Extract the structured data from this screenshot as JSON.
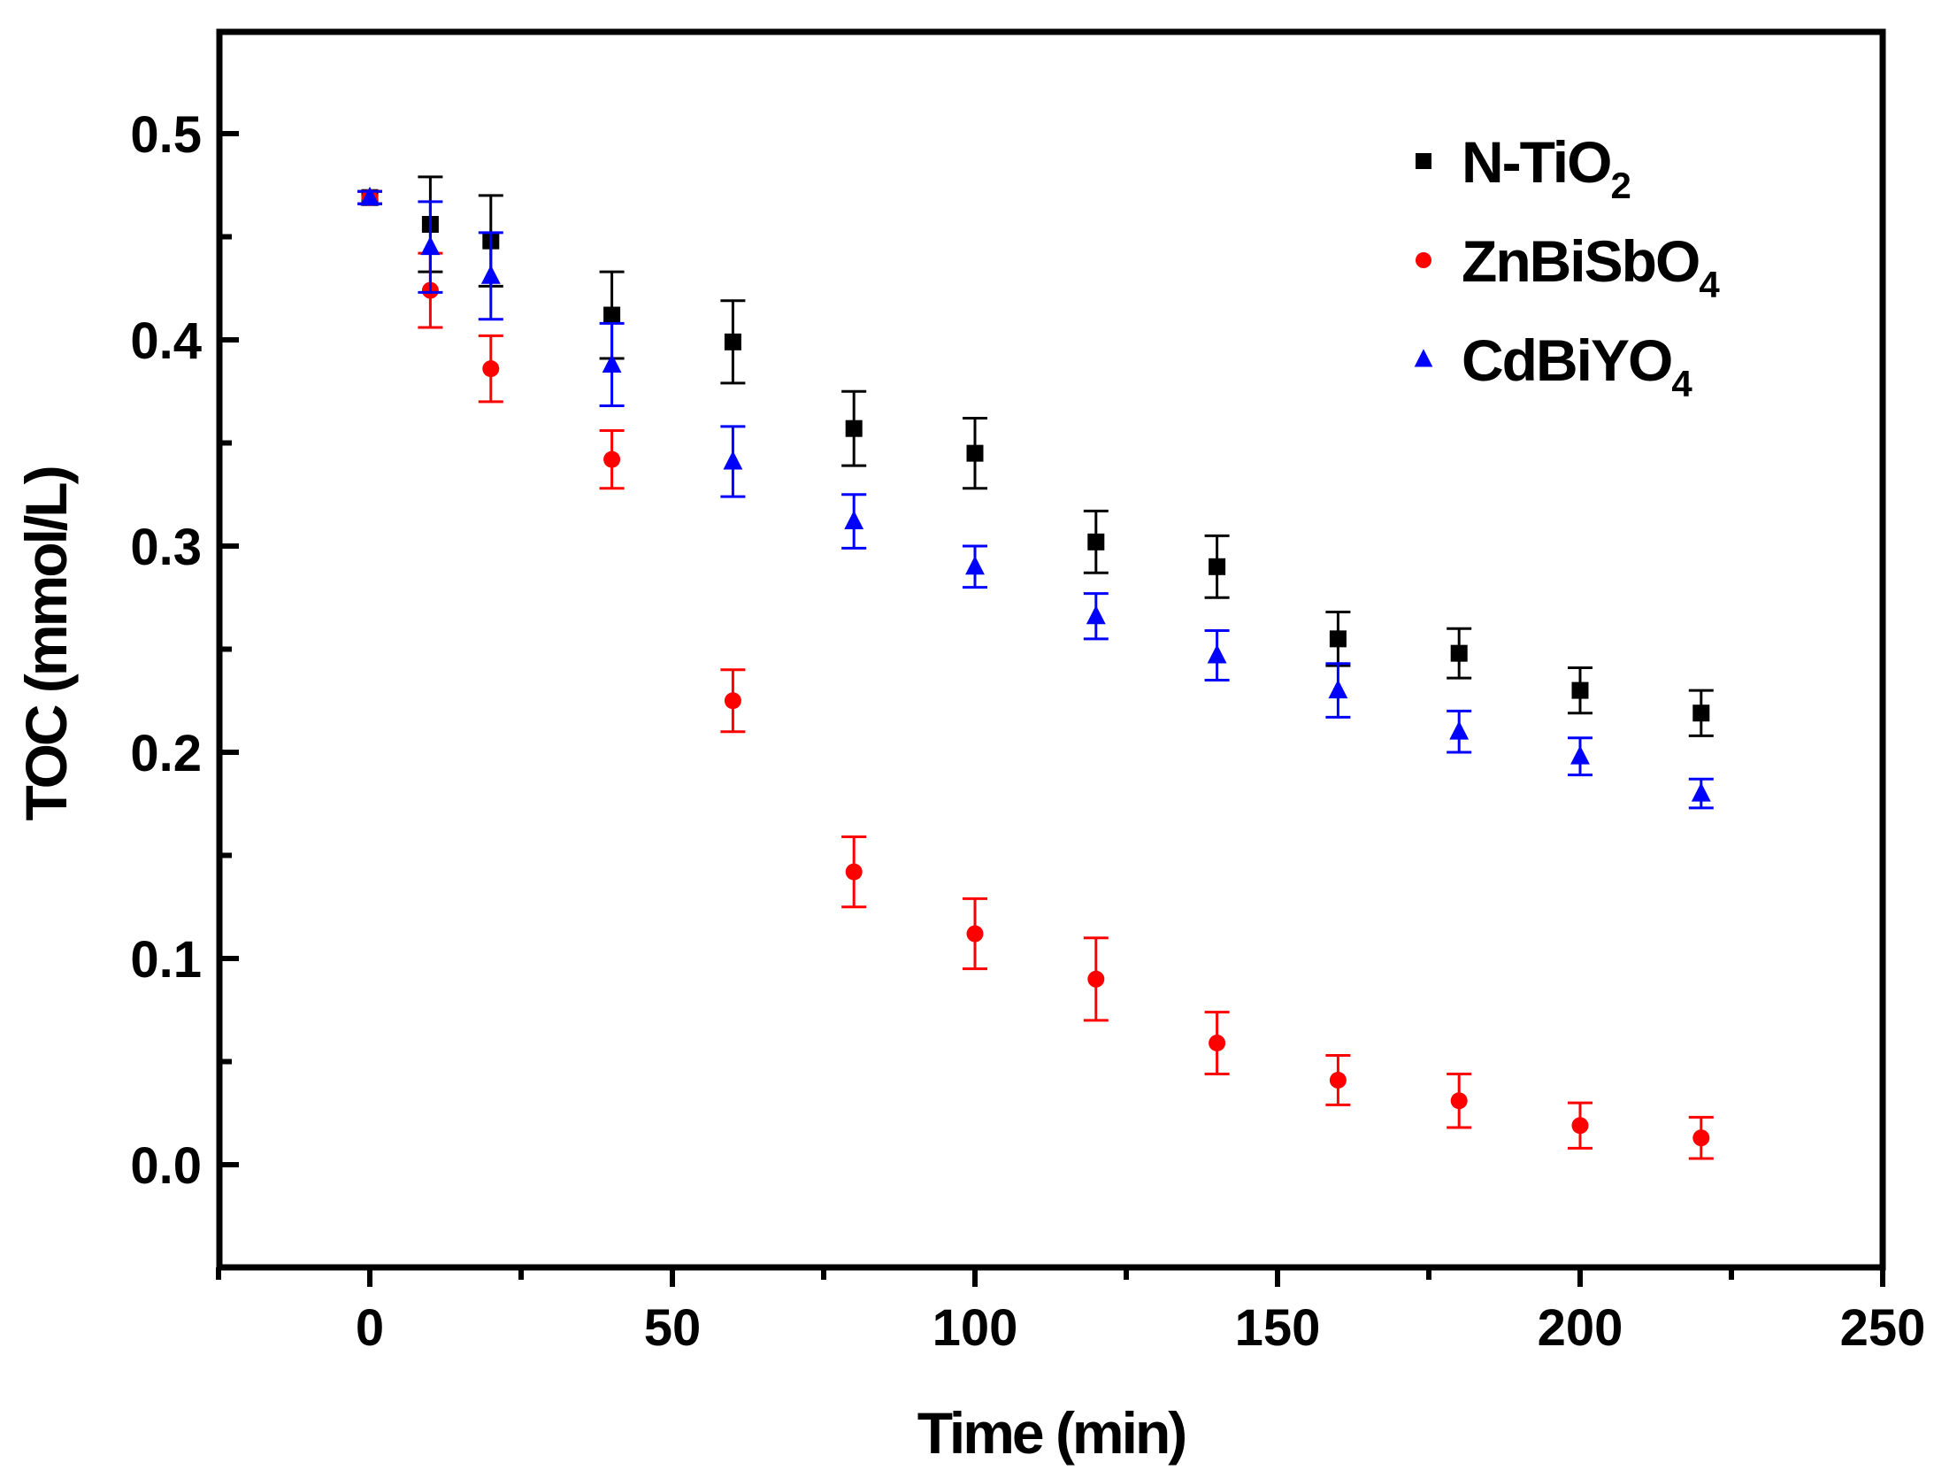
{
  "chart_data": {
    "type": "scatter",
    "title": "",
    "xlabel": "Time (min)",
    "ylabel": "TOC (mmol/L)",
    "xlim": [
      -25,
      250
    ],
    "ylim": [
      -0.05,
      0.55
    ],
    "x_ticks": [
      "0",
      "50",
      "100",
      "150",
      "200",
      "250"
    ],
    "y_ticks": [
      "0.0",
      "0.1",
      "0.2",
      "0.3",
      "0.4",
      "0.5"
    ],
    "grid": false,
    "legend_position": "top-right",
    "series": [
      {
        "name": "N-TiO",
        "name_subscript": "2",
        "marker": "square",
        "color": "#000000",
        "x": [
          0,
          10,
          20,
          40,
          60,
          80,
          100,
          120,
          140,
          160,
          180,
          200,
          220
        ],
        "values": [
          0.469,
          0.456,
          0.448,
          0.412,
          0.399,
          0.357,
          0.345,
          0.302,
          0.29,
          0.255,
          0.248,
          0.23,
          0.219
        ],
        "errors": [
          0.003,
          0.023,
          0.022,
          0.021,
          0.02,
          0.018,
          0.017,
          0.015,
          0.015,
          0.013,
          0.012,
          0.011,
          0.011
        ]
      },
      {
        "name": "ZnBiSbO",
        "name_subscript": "4",
        "marker": "circle",
        "color": "#ff0000",
        "x": [
          0,
          10,
          20,
          40,
          60,
          80,
          100,
          120,
          140,
          160,
          180,
          200,
          220
        ],
        "values": [
          0.469,
          0.424,
          0.386,
          0.342,
          0.225,
          0.142,
          0.112,
          0.09,
          0.059,
          0.041,
          0.031,
          0.019,
          0.013
        ],
        "errors": [
          0.003,
          0.018,
          0.016,
          0.014,
          0.015,
          0.017,
          0.017,
          0.02,
          0.015,
          0.012,
          0.013,
          0.011,
          0.01
        ]
      },
      {
        "name": "CdBiYO",
        "name_subscript": "4",
        "marker": "triangle",
        "color": "#0000ff",
        "x": [
          0,
          10,
          20,
          40,
          60,
          80,
          100,
          120,
          140,
          160,
          180,
          200,
          220
        ],
        "values": [
          0.469,
          0.445,
          0.431,
          0.388,
          0.341,
          0.312,
          0.29,
          0.266,
          0.247,
          0.23,
          0.21,
          0.198,
          0.18
        ],
        "errors": [
          0.003,
          0.022,
          0.021,
          0.02,
          0.017,
          0.013,
          0.01,
          0.011,
          0.012,
          0.013,
          0.01,
          0.009,
          0.007
        ]
      }
    ]
  }
}
